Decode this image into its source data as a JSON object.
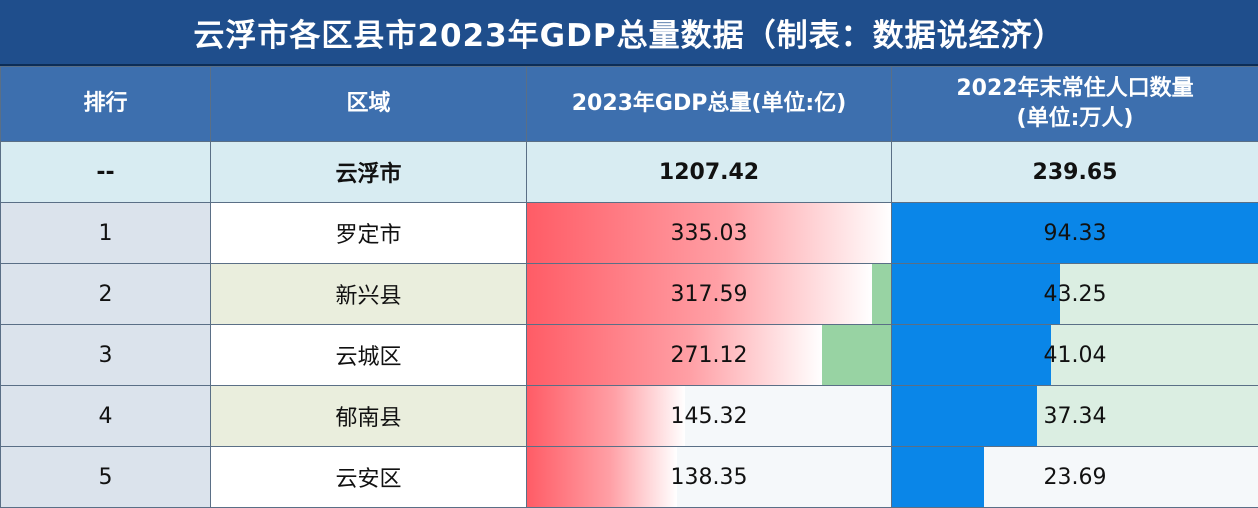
{
  "title": "云浮市各区县市2023年GDP总量数据（制表：数据说经济）",
  "colors": {
    "title_bg": "#1f4e8c",
    "header_bg": "#3d6fae",
    "gdp_bar": "#ff5c66",
    "pop_bar": "#0a86e8",
    "total_row_bg": "#d8ecf2"
  },
  "chart_data": {
    "type": "table",
    "columns": [
      "排行",
      "区域",
      "2023年GDP总量(单位:亿)",
      "2022年末常住人口数量\n(单位:万人)"
    ],
    "column_header_lines": {
      "pop": [
        "2022年末常住人口数量",
        "(单位:万人)"
      ]
    },
    "total": {
      "rank": "--",
      "region": "云浮市",
      "gdp": "1207.42",
      "pop": "239.65"
    },
    "rows": [
      {
        "rank": "1",
        "region": "罗定市",
        "gdp": 335.03,
        "pop": 94.33
      },
      {
        "rank": "2",
        "region": "新兴县",
        "gdp": 317.59,
        "pop": 43.25
      },
      {
        "rank": "3",
        "region": "云城区",
        "gdp": 271.12,
        "pop": 41.04
      },
      {
        "rank": "4",
        "region": "郁南县",
        "gdp": 145.32,
        "pop": 37.34
      },
      {
        "rank": "5",
        "region": "云安区",
        "gdp": 138.35,
        "pop": 23.69
      }
    ],
    "gdp_max": 335.03,
    "pop_max": 94.33
  }
}
